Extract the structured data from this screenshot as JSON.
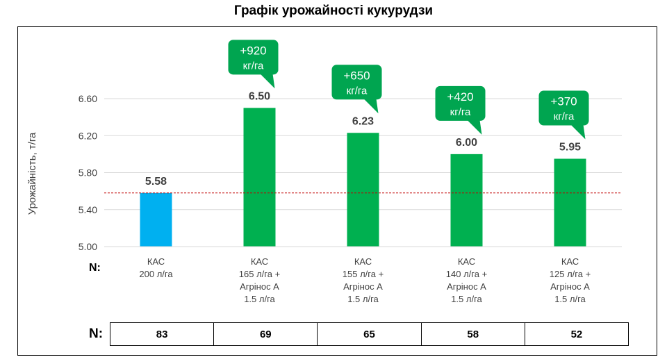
{
  "chart_data": {
    "type": "bar",
    "title": "Графік урожайності кукурудзи",
    "ylabel": "Урожайність, т/га",
    "ylim": [
      5.0,
      6.6
    ],
    "yticks": [
      "5.00",
      "5.40",
      "5.80",
      "6.20",
      "6.60"
    ],
    "grid": true,
    "categories": [
      [
        "КАС",
        "200 л/га"
      ],
      [
        "КАС",
        "165 л/га +",
        "Агрінос А",
        "1.5 л/га"
      ],
      [
        "КАС",
        "155 л/га +",
        "Агрінос А",
        "1.5 л/га"
      ],
      [
        "КАС",
        "140 л/га +",
        "Агрінос А",
        "1.5 л/га"
      ],
      [
        "КАС",
        "125 л/га +",
        "Агрінос А",
        "1.5 л/га"
      ]
    ],
    "values": [
      5.58,
      6.5,
      6.23,
      6.0,
      5.95
    ],
    "value_labels": [
      "5.58",
      "6.50",
      "6.23",
      "6.00",
      "5.95"
    ],
    "bar_colors": [
      "#00b0f0",
      "#00b050",
      "#00b050",
      "#00b050",
      "#00b050"
    ],
    "reference_line": 5.58,
    "reference_line_color": "#c00000",
    "callouts": [
      null,
      [
        "+920",
        "кг/га"
      ],
      [
        "+650",
        "кг/га"
      ],
      [
        "+420",
        "кг/га"
      ],
      [
        "+370",
        "кг/га"
      ]
    ],
    "callout_color": "#00a550",
    "n_axis_label": "N:",
    "n_row_label": "N:",
    "n_values": [
      "83",
      "69",
      "65",
      "58",
      "52"
    ]
  }
}
